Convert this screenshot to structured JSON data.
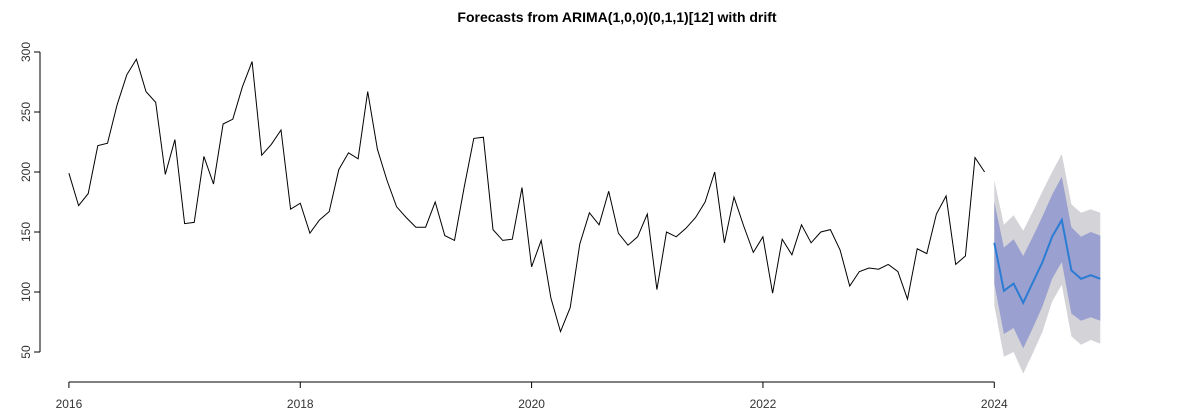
{
  "chart_data": {
    "type": "line",
    "title": "Forecasts from ARIMA(1,0,0)(0,1,1)[12] with drift",
    "xlabel": "",
    "ylabel": "",
    "xlim": [
      2015.75,
      2025.45
    ],
    "ylim": [
      25,
      305
    ],
    "x_ticks": [
      2016,
      2018,
      2020,
      2022,
      2024
    ],
    "y_ticks": [
      50,
      100,
      150,
      200,
      250,
      300
    ],
    "grid": false,
    "legend": "none",
    "series": [
      {
        "role": "observed",
        "color": "#000000",
        "start": 2016,
        "frequency": 12,
        "values": [
          199,
          172,
          182,
          222,
          224,
          256,
          281,
          294,
          267,
          258,
          198,
          227,
          157,
          158,
          213,
          190,
          240,
          244,
          271,
          292,
          214,
          223,
          235,
          169,
          174,
          149,
          160,
          167,
          202,
          216,
          211,
          267,
          219,
          193,
          171,
          162,
          154,
          154,
          175,
          147,
          143,
          187,
          228,
          229,
          152,
          143,
          144,
          187,
          121,
          143,
          95,
          67,
          87,
          140,
          166,
          156,
          184,
          149,
          139,
          146,
          165,
          102,
          150,
          146,
          153,
          162,
          175,
          200,
          141,
          179,
          155,
          133,
          146,
          99,
          144,
          131,
          156,
          141,
          150,
          152,
          135,
          105,
          117,
          120,
          119,
          123,
          117,
          94,
          136,
          132,
          165,
          180,
          123,
          130,
          212,
          200
        ]
      },
      {
        "role": "forecast",
        "color": "#2b7cd3",
        "start": 2024,
        "frequency": 12,
        "values": [
          141,
          101,
          107,
          91,
          108,
          125,
          146,
          160,
          118,
          111,
          114,
          111
        ],
        "lower_80": [
          107,
          65,
          70,
          53,
          70,
          88,
          111,
          125,
          82,
          76,
          79,
          76
        ],
        "upper_80": [
          175,
          137,
          144,
          130,
          146,
          163,
          181,
          196,
          154,
          146,
          150,
          147
        ],
        "lower_95": [
          89,
          46,
          50,
          32,
          49,
          67,
          92,
          106,
          63,
          56,
          60,
          57
        ],
        "upper_95": [
          193,
          156,
          164,
          151,
          167,
          184,
          200,
          215,
          173,
          166,
          169,
          166
        ],
        "band_80_color": "#9aa0cf",
        "band_95_color": "#d3d3d8"
      }
    ]
  }
}
